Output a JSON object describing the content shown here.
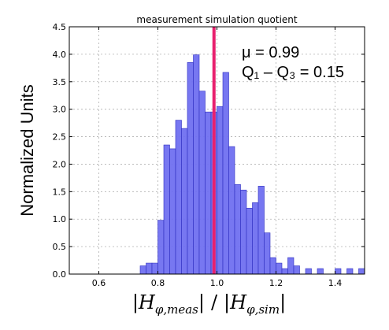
{
  "chart_data": {
    "type": "bar",
    "title": "measurement simulation quotient",
    "xlabel": "|H_{φ,meas}| / |H_{φ,sim}|",
    "ylabel": "Normalized Units",
    "xlim": [
      0.5,
      1.5
    ],
    "ylim": [
      0,
      4.5
    ],
    "xticks": [
      "0.6",
      "0.8",
      "1.0",
      "1.2",
      "1.4"
    ],
    "yticks": [
      "0.0",
      "0.5",
      "1.0",
      "1.5",
      "2.0",
      "2.5",
      "3.0",
      "3.5",
      "4.0",
      "4.5"
    ],
    "grid": true,
    "bar_color": "#7070f0",
    "bar_edge_color": "#3030c0",
    "marker_line": {
      "x": 0.99,
      "color": "#e8206e"
    },
    "annotations": [
      "μ = 0.99",
      "Q₁ – Q₃ = 0.15"
    ],
    "bin_width": 0.02,
    "bins": [
      {
        "x0": 0.74,
        "value": 0.15
      },
      {
        "x0": 0.76,
        "value": 0.2
      },
      {
        "x0": 0.78,
        "value": 0.2
      },
      {
        "x0": 0.8,
        "value": 0.98
      },
      {
        "x0": 0.82,
        "value": 2.35
      },
      {
        "x0": 0.84,
        "value": 2.28
      },
      {
        "x0": 0.86,
        "value": 2.8
      },
      {
        "x0": 0.88,
        "value": 2.65
      },
      {
        "x0": 0.9,
        "value": 3.85
      },
      {
        "x0": 0.92,
        "value": 3.99
      },
      {
        "x0": 0.94,
        "value": 3.33
      },
      {
        "x0": 0.96,
        "value": 2.95
      },
      {
        "x0": 0.98,
        "value": 2.95
      },
      {
        "x0": 1.0,
        "value": 3.05
      },
      {
        "x0": 1.02,
        "value": 3.67
      },
      {
        "x0": 1.04,
        "value": 2.32
      },
      {
        "x0": 1.06,
        "value": 1.63
      },
      {
        "x0": 1.08,
        "value": 1.53
      },
      {
        "x0": 1.1,
        "value": 1.2
      },
      {
        "x0": 1.12,
        "value": 1.3
      },
      {
        "x0": 1.14,
        "value": 1.6
      },
      {
        "x0": 1.16,
        "value": 0.75
      },
      {
        "x0": 1.18,
        "value": 0.3
      },
      {
        "x0": 1.2,
        "value": 0.2
      },
      {
        "x0": 1.22,
        "value": 0.1
      },
      {
        "x0": 1.24,
        "value": 0.3
      },
      {
        "x0": 1.26,
        "value": 0.15
      },
      {
        "x0": 1.3,
        "value": 0.1
      },
      {
        "x0": 1.34,
        "value": 0.1
      },
      {
        "x0": 1.4,
        "value": 0.1
      },
      {
        "x0": 1.44,
        "value": 0.1
      },
      {
        "x0": 1.48,
        "value": 0.1
      }
    ]
  }
}
